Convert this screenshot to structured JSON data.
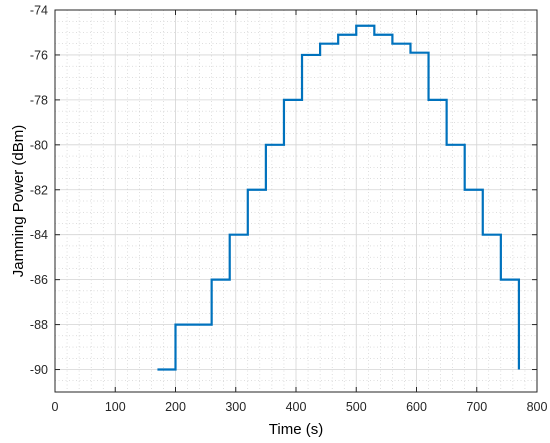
{
  "chart_data": {
    "type": "line",
    "step": true,
    "xlabel": "Time (s)",
    "ylabel": "Jamming Power (dBm)",
    "xlim": [
      0,
      800
    ],
    "ylim": [
      -91,
      -74
    ],
    "xticks": [
      0,
      100,
      200,
      300,
      400,
      500,
      600,
      700,
      800
    ],
    "yticks": [
      -90,
      -88,
      -86,
      -84,
      -82,
      -80,
      -78,
      -76,
      -74
    ],
    "grid": "major and minor",
    "series": [
      {
        "color": "#0072BD",
        "x": [
          170,
          200,
          230,
          260,
          290,
          320,
          350,
          380,
          410,
          440,
          470,
          500,
          530,
          560,
          590,
          620,
          650,
          680,
          710,
          740,
          770
        ],
        "y": [
          -90,
          -88,
          -88,
          -86,
          -84,
          -82,
          -80,
          -78,
          -76,
          -75.5,
          -75.1,
          -74.7,
          -75.1,
          -75.5,
          -75.9,
          -78,
          -80,
          -82,
          -84,
          -86,
          -88
        ]
      }
    ],
    "end_x": 770,
    "end_y": -90
  }
}
